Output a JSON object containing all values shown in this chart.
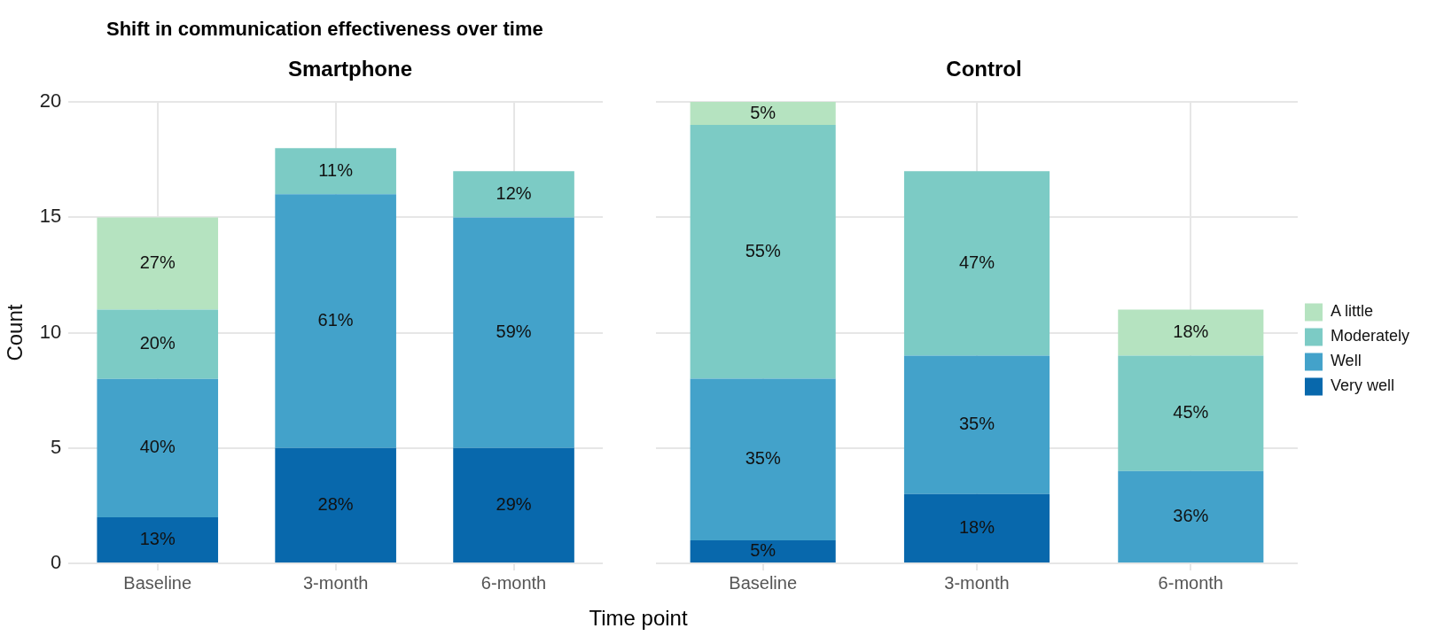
{
  "chart_data": [
    {
      "type": "bar",
      "title": "Shift in communication effectiveness over time",
      "subtitle": "Smartphone",
      "xlabel": "Time point",
      "ylabel": "Count",
      "categories": [
        "Baseline",
        "3-month",
        "6-month"
      ],
      "stacked": true,
      "ylim": [
        0,
        20
      ],
      "yticks": [
        0,
        5,
        10,
        15,
        20
      ],
      "grid": true,
      "legend": false,
      "series": [
        {
          "color": "#0868ac",
          "values": [
            2,
            5,
            5
          ]
        },
        {
          "color": "#43a2ca",
          "values": [
            6,
            11,
            10
          ]
        },
        {
          "color": "#7ccbc5",
          "values": [
            3,
            2,
            2
          ]
        },
        {
          "color": "#b5e3c0",
          "values": [
            4,
            0,
            0
          ]
        }
      ],
      "annotations": [
        "13%",
        "40%",
        "20%",
        "27%",
        "28%",
        "61%",
        "11%",
        "29%",
        "59%",
        "12%"
      ]
    },
    {
      "type": "bar",
      "subtitle": "Control",
      "categories": [
        "Baseline",
        "3-month",
        "6-month"
      ],
      "stacked": true,
      "ylim": [
        0,
        20
      ],
      "yticks": [
        0,
        5,
        10,
        15,
        20
      ],
      "grid": true,
      "legend": "right",
      "tick_labels": "x",
      "series": [
        {
          "name": "Very well",
          "color": "#0868ac",
          "values": [
            1,
            3,
            0
          ]
        },
        {
          "name": "Well",
          "color": "#43a2ca",
          "values": [
            7,
            6,
            4
          ]
        },
        {
          "name": "Moderately",
          "color": "#7ccbc5",
          "values": [
            11,
            8,
            5
          ]
        },
        {
          "name": "A little",
          "color": "#b5e3c0",
          "values": [
            1,
            0,
            2
          ]
        }
      ],
      "annotations": [
        "5%",
        "35%",
        "55%",
        "5%",
        "18%",
        "35%",
        "47%",
        "36%",
        "45%",
        "18%"
      ]
    }
  ]
}
